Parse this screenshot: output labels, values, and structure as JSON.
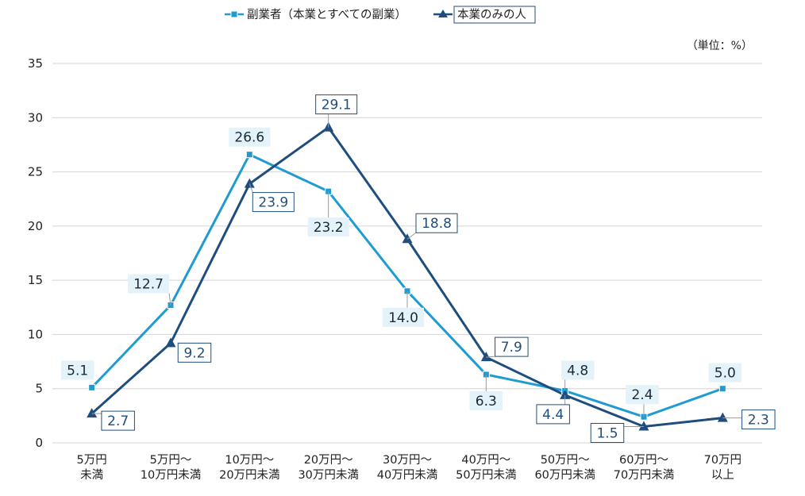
{
  "chart_data": {
    "type": "line",
    "unit_label": "（単位：%）",
    "categories": [
      [
        "5万円",
        "未満"
      ],
      [
        "5万円～",
        "10万円未満"
      ],
      [
        "10万円～",
        "20万円未満"
      ],
      [
        "20万円～",
        "30万円未満"
      ],
      [
        "30万円～",
        "40万円未満"
      ],
      [
        "40万円～",
        "50万円未満"
      ],
      [
        "50万円～",
        "60万円未満"
      ],
      [
        "60万円～",
        "70万円未満"
      ],
      [
        "70万円",
        "以上"
      ]
    ],
    "ylim": [
      0,
      35
    ],
    "yticks": [
      0,
      5,
      10,
      15,
      20,
      25,
      30,
      35
    ],
    "grid": true,
    "legend_position": "top",
    "series": [
      {
        "name": "副業者（本業とすべての副業）",
        "color": "#1e9bd1",
        "marker": "square",
        "values": [
          5.1,
          12.7,
          26.6,
          23.2,
          14.0,
          6.3,
          4.8,
          2.4,
          5.0
        ],
        "labels": [
          "5.1",
          "12.7",
          "26.6",
          "23.2",
          "14.0",
          "6.3",
          "4.8",
          "2.4",
          "5.0"
        ]
      },
      {
        "name": "本業のみの人",
        "color": "#1f4e7e",
        "marker": "triangle",
        "values": [
          2.7,
          9.2,
          23.9,
          29.1,
          18.8,
          7.9,
          4.4,
          1.5,
          2.3
        ],
        "labels": [
          "2.7",
          "9.2",
          "23.9",
          "29.1",
          "18.8",
          "7.9",
          "4.4",
          "1.5",
          "2.3"
        ]
      }
    ]
  }
}
